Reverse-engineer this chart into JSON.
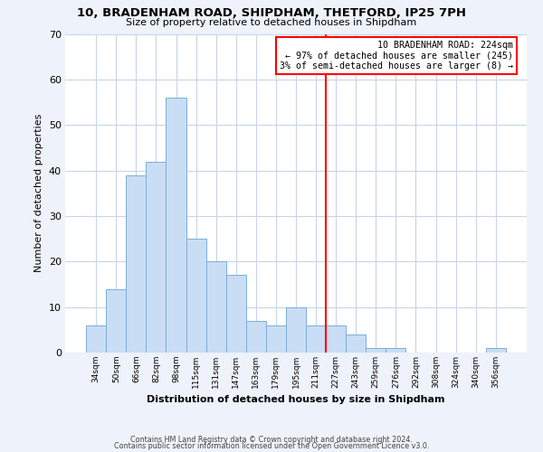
{
  "title": "10, BRADENHAM ROAD, SHIPDHAM, THETFORD, IP25 7PH",
  "subtitle": "Size of property relative to detached houses in Shipdham",
  "xlabel": "Distribution of detached houses by size in Shipdham",
  "ylabel": "Number of detached properties",
  "bar_labels": [
    "34sqm",
    "50sqm",
    "66sqm",
    "82sqm",
    "98sqm",
    "115sqm",
    "131sqm",
    "147sqm",
    "163sqm",
    "179sqm",
    "195sqm",
    "211sqm",
    "227sqm",
    "243sqm",
    "259sqm",
    "276sqm",
    "292sqm",
    "308sqm",
    "324sqm",
    "340sqm",
    "356sqm"
  ],
  "bar_heights": [
    6,
    14,
    39,
    42,
    56,
    25,
    20,
    17,
    7,
    6,
    10,
    6,
    6,
    4,
    1,
    1,
    0,
    0,
    0,
    0,
    1
  ],
  "bar_color": "#c9ddf5",
  "bar_edge_color": "#7bafd4",
  "ylim": [
    0,
    70
  ],
  "yticks": [
    0,
    10,
    20,
    30,
    40,
    50,
    60,
    70
  ],
  "property_label": "10 BRADENHAM ROAD: 224sqm",
  "line1": "← 97% of detached houses are smaller (245)",
  "line2": "3% of semi-detached houses are larger (8) →",
  "vline_x": 11.5,
  "footer1": "Contains HM Land Registry data © Crown copyright and database right 2024.",
  "footer2": "Contains public sector information licensed under the Open Government Licence v3.0.",
  "background_color": "#eef2fa",
  "plot_bg_color": "#ffffff",
  "grid_color": "#c8d4e8"
}
